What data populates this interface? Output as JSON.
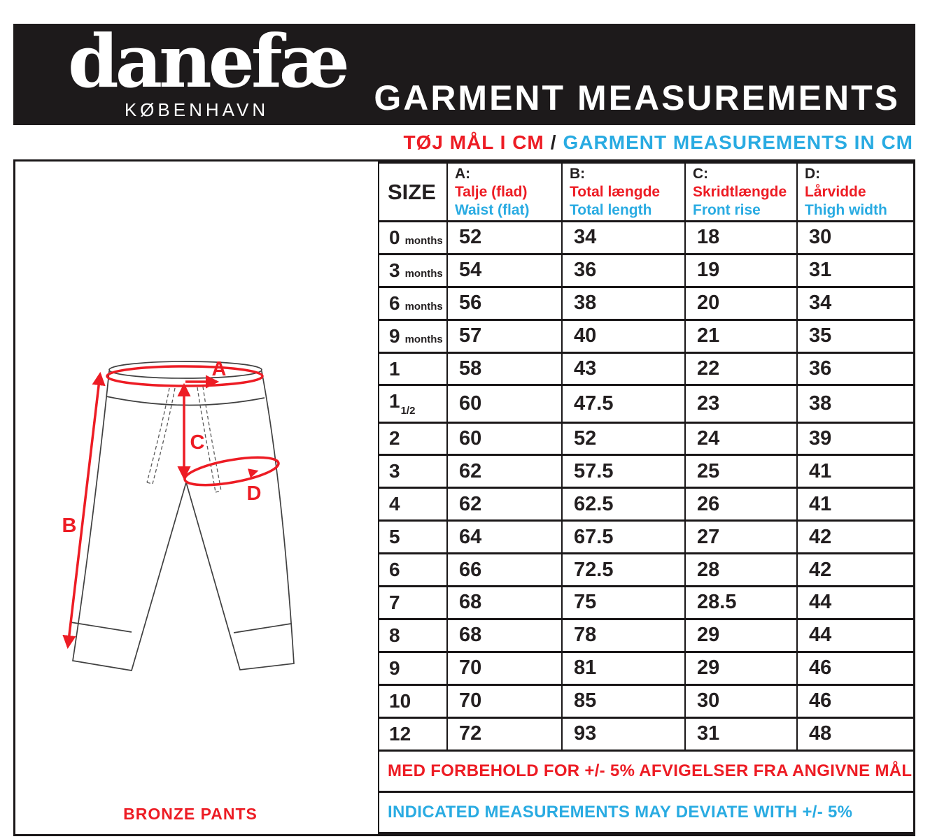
{
  "brand": {
    "logo": "danefæ",
    "city": "KØBENHAVN"
  },
  "header": {
    "title": "GARMENT MEASUREMENTS"
  },
  "subtitle": {
    "da": "TØJ MÅL I CM",
    "sep": "/",
    "en": "GARMENT MEASUREMENTS IN CM"
  },
  "diagram": {
    "labels": {
      "a": "A",
      "b": "B",
      "c": "C",
      "d": "D"
    },
    "product": "BRONZE PANTS"
  },
  "table": {
    "size_header": "SIZE",
    "columns": [
      {
        "key": "A:",
        "da": "Talje (flad)",
        "en": "Waist (flat)"
      },
      {
        "key": "B:",
        "da": "Total længde",
        "en": "Total length"
      },
      {
        "key": "C:",
        "da": "Skridtlængde",
        "en": "Front rise"
      },
      {
        "key": "D:",
        "da": "Lårvidde",
        "en": "Thigh width"
      }
    ],
    "rows": [
      {
        "size": "0",
        "note": "months",
        "values": [
          "52",
          "34",
          "18",
          "30"
        ]
      },
      {
        "size": "3",
        "note": "months",
        "values": [
          "54",
          "36",
          "19",
          "31"
        ]
      },
      {
        "size": "6",
        "note": "months",
        "values": [
          "56",
          "38",
          "20",
          "34"
        ]
      },
      {
        "size": "9",
        "note": "months",
        "values": [
          "57",
          "40",
          "21",
          "35"
        ]
      },
      {
        "size": "1",
        "values": [
          "58",
          "43",
          "22",
          "36"
        ]
      },
      {
        "size": "1",
        "sub": "1/2",
        "values": [
          "60",
          "47.5",
          "23",
          "38"
        ]
      },
      {
        "size": "2",
        "values": [
          "60",
          "52",
          "24",
          "39"
        ]
      },
      {
        "size": "3",
        "values": [
          "62",
          "57.5",
          "25",
          "41"
        ]
      },
      {
        "size": "4",
        "values": [
          "62",
          "62.5",
          "26",
          "41"
        ]
      },
      {
        "size": "5",
        "values": [
          "64",
          "67.5",
          "27",
          "42"
        ]
      },
      {
        "size": "6",
        "values": [
          "66",
          "72.5",
          "28",
          "42"
        ]
      },
      {
        "size": "7",
        "values": [
          "68",
          "75",
          "28.5",
          "44"
        ]
      },
      {
        "size": "8",
        "values": [
          "68",
          "78",
          "29",
          "44"
        ]
      },
      {
        "size": "9",
        "values": [
          "70",
          "81",
          "29",
          "46"
        ]
      },
      {
        "size": "10",
        "values": [
          "70",
          "85",
          "30",
          "46"
        ]
      },
      {
        "size": "12",
        "values": [
          "72",
          "93",
          "31",
          "48"
        ]
      }
    ],
    "notes": {
      "da": "MED FORBEHOLD FOR +/- 5% AFVIGELSER FRA ANGIVNE MÅL",
      "en": "INDICATED MEASUREMENTS MAY DEVIATE WITH +/- 5%"
    }
  },
  "colors": {
    "red": "#ED1C24",
    "blue": "#29ABE2",
    "bar": "#1D1A1B",
    "ink": "#231F20"
  }
}
